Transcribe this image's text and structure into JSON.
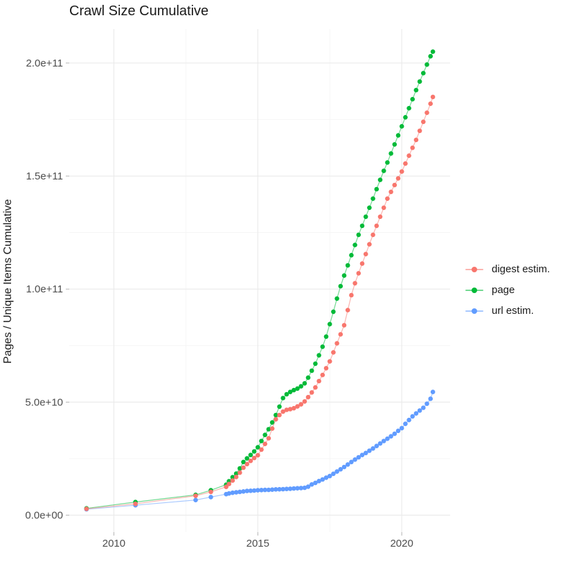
{
  "chart_data": {
    "type": "line",
    "subtype": "scatter-line-cumulative",
    "title": "Crawl Size Cumulative",
    "xlabel": "",
    "ylabel": "Pages / Unique Items Cumulative",
    "value_unit": "1e9",
    "xlim": [
      2008.45,
      2021.68
    ],
    "ylim_e9": [
      -7.5,
      215
    ],
    "grid": true,
    "legend_position": "right",
    "x_major_ticks": [
      {
        "label": "2010",
        "value": 2010
      },
      {
        "label": "2015",
        "value": 2015
      },
      {
        "label": "2020",
        "value": 2020
      }
    ],
    "x_minor_ticks": [
      2012.5,
      2017.5
    ],
    "y_major_ticks": [
      {
        "label": "0.0e+00",
        "value_e9": 0
      },
      {
        "label": "5.0e+10",
        "value_e9": 50
      },
      {
        "label": "1.0e+11",
        "value_e9": 100
      },
      {
        "label": "1.5e+11",
        "value_e9": 150
      },
      {
        "label": "2.0e+11",
        "value_e9": 200
      }
    ],
    "y_minor_ticks_e9": [
      25,
      75,
      125,
      175
    ],
    "series": [
      {
        "name": "digest estim.",
        "color": "#F8766D",
        "points": [
          [
            2009.05,
            2.8
          ],
          [
            2010.75,
            5.0
          ],
          [
            2012.84,
            8.6
          ],
          [
            2013.37,
            10.3
          ],
          [
            2013.9,
            12.5
          ],
          [
            2014.0,
            13.8
          ],
          [
            2014.125,
            15.3
          ],
          [
            2014.25,
            16.9
          ],
          [
            2014.375,
            18.8
          ],
          [
            2014.5,
            21
          ],
          [
            2014.625,
            22.6
          ],
          [
            2014.75,
            24
          ],
          [
            2014.875,
            25.3
          ],
          [
            2015.0,
            26.5
          ],
          [
            2015.125,
            29
          ],
          [
            2015.25,
            31.5
          ],
          [
            2015.375,
            34
          ],
          [
            2015.5,
            38.3
          ],
          [
            2015.625,
            42.4
          ],
          [
            2015.75,
            44.3
          ],
          [
            2015.875,
            45.8
          ],
          [
            2016.0,
            46.6
          ],
          [
            2016.125,
            46.9
          ],
          [
            2016.25,
            47.3
          ],
          [
            2016.375,
            48.1
          ],
          [
            2016.5,
            49
          ],
          [
            2016.625,
            50.3
          ],
          [
            2016.75,
            52.2
          ],
          [
            2016.875,
            54.3
          ],
          [
            2017.0,
            56.5
          ],
          [
            2017.125,
            59.3
          ],
          [
            2017.25,
            62
          ],
          [
            2017.375,
            65
          ],
          [
            2017.5,
            68
          ],
          [
            2017.625,
            72
          ],
          [
            2017.75,
            76
          ],
          [
            2017.875,
            80
          ],
          [
            2018.0,
            84
          ],
          [
            2018.125,
            90.7
          ],
          [
            2018.25,
            97.3
          ],
          [
            2018.375,
            102.6
          ],
          [
            2018.5,
            107
          ],
          [
            2018.625,
            111.3
          ],
          [
            2018.75,
            115.5
          ],
          [
            2018.875,
            119.8
          ],
          [
            2019.0,
            124
          ],
          [
            2019.125,
            128
          ],
          [
            2019.25,
            132
          ],
          [
            2019.375,
            136
          ],
          [
            2019.5,
            140
          ],
          [
            2019.625,
            143
          ],
          [
            2019.75,
            146
          ],
          [
            2019.875,
            149
          ],
          [
            2020.0,
            152
          ],
          [
            2020.125,
            155.5
          ],
          [
            2020.25,
            159
          ],
          [
            2020.375,
            162.5
          ],
          [
            2020.5,
            166
          ],
          [
            2020.625,
            170
          ],
          [
            2020.75,
            174
          ],
          [
            2020.875,
            178
          ],
          [
            2021.0,
            182
          ],
          [
            2021.08,
            185
          ]
        ]
      },
      {
        "name": "page",
        "color": "#00BA38",
        "points": [
          [
            2009.05,
            3.0
          ],
          [
            2010.75,
            5.8
          ],
          [
            2012.84,
            9.0
          ],
          [
            2013.37,
            11.0
          ],
          [
            2013.9,
            13.5
          ],
          [
            2014.0,
            15
          ],
          [
            2014.125,
            16.8
          ],
          [
            2014.25,
            18.4
          ],
          [
            2014.375,
            20.7
          ],
          [
            2014.5,
            23.5
          ],
          [
            2014.625,
            25.1
          ],
          [
            2014.75,
            26.6
          ],
          [
            2014.875,
            28.2
          ],
          [
            2015.0,
            30
          ],
          [
            2015.125,
            32.8
          ],
          [
            2015.25,
            35.5
          ],
          [
            2015.375,
            38
          ],
          [
            2015.5,
            41
          ],
          [
            2015.625,
            44.3
          ],
          [
            2015.75,
            48
          ],
          [
            2015.875,
            51.8
          ],
          [
            2016.0,
            53.5
          ],
          [
            2016.125,
            54.5
          ],
          [
            2016.25,
            55.3
          ],
          [
            2016.375,
            56
          ],
          [
            2016.5,
            57
          ],
          [
            2016.625,
            58.3
          ],
          [
            2016.75,
            60.8
          ],
          [
            2016.875,
            63.9
          ],
          [
            2017.0,
            67
          ],
          [
            2017.125,
            70.7
          ],
          [
            2017.25,
            74.5
          ],
          [
            2017.375,
            79
          ],
          [
            2017.5,
            84.5
          ],
          [
            2017.625,
            90
          ],
          [
            2017.75,
            95.8
          ],
          [
            2017.875,
            101.3
          ],
          [
            2018.0,
            106
          ],
          [
            2018.125,
            110.5
          ],
          [
            2018.25,
            115
          ],
          [
            2018.375,
            119.5
          ],
          [
            2018.5,
            124
          ],
          [
            2018.625,
            128
          ],
          [
            2018.75,
            132
          ],
          [
            2018.875,
            136
          ],
          [
            2019.0,
            140
          ],
          [
            2019.125,
            144.2
          ],
          [
            2019.25,
            148.3
          ],
          [
            2019.375,
            152.3
          ],
          [
            2019.5,
            156
          ],
          [
            2019.625,
            160
          ],
          [
            2019.75,
            164
          ],
          [
            2019.875,
            168
          ],
          [
            2020.0,
            172
          ],
          [
            2020.125,
            176
          ],
          [
            2020.25,
            180
          ],
          [
            2020.375,
            184
          ],
          [
            2020.5,
            188
          ],
          [
            2020.625,
            191.8
          ],
          [
            2020.75,
            195.5
          ],
          [
            2020.875,
            199.3
          ],
          [
            2021.0,
            203
          ],
          [
            2021.08,
            205
          ]
        ]
      },
      {
        "name": "url estim.",
        "color": "#619CFF",
        "points": [
          [
            2009.05,
            2.6
          ],
          [
            2010.75,
            4.4
          ],
          [
            2012.84,
            6.7
          ],
          [
            2013.37,
            8.0
          ],
          [
            2013.9,
            9.3
          ],
          [
            2014.0,
            9.6
          ],
          [
            2014.125,
            9.9
          ],
          [
            2014.25,
            10.1
          ],
          [
            2014.375,
            10.3
          ],
          [
            2014.5,
            10.5
          ],
          [
            2014.625,
            10.7
          ],
          [
            2014.75,
            10.8
          ],
          [
            2014.875,
            10.9
          ],
          [
            2015.0,
            11
          ],
          [
            2015.125,
            11.1
          ],
          [
            2015.25,
            11.15
          ],
          [
            2015.375,
            11.2
          ],
          [
            2015.5,
            11.3
          ],
          [
            2015.625,
            11.4
          ],
          [
            2015.75,
            11.45
          ],
          [
            2015.875,
            11.5
          ],
          [
            2016.0,
            11.6
          ],
          [
            2016.125,
            11.7
          ],
          [
            2016.25,
            11.8
          ],
          [
            2016.375,
            11.9
          ],
          [
            2016.5,
            12
          ],
          [
            2016.625,
            12.1
          ],
          [
            2016.75,
            12.6
          ],
          [
            2016.875,
            13.6
          ],
          [
            2017.0,
            14.3
          ],
          [
            2017.125,
            15.1
          ],
          [
            2017.25,
            15.8
          ],
          [
            2017.375,
            16.6
          ],
          [
            2017.5,
            17.3
          ],
          [
            2017.625,
            18.3
          ],
          [
            2017.75,
            19.3
          ],
          [
            2017.875,
            20.3
          ],
          [
            2018.0,
            21.3
          ],
          [
            2018.125,
            22.4
          ],
          [
            2018.25,
            23.5
          ],
          [
            2018.375,
            24.6
          ],
          [
            2018.5,
            25.6
          ],
          [
            2018.625,
            26.6
          ],
          [
            2018.75,
            27.5
          ],
          [
            2018.875,
            28.5
          ],
          [
            2019.0,
            29.5
          ],
          [
            2019.125,
            30.6
          ],
          [
            2019.25,
            31.7
          ],
          [
            2019.375,
            32.8
          ],
          [
            2019.5,
            33.8
          ],
          [
            2019.625,
            34.9
          ],
          [
            2019.75,
            36
          ],
          [
            2019.875,
            37.3
          ],
          [
            2020.0,
            38.5
          ],
          [
            2020.125,
            40.4
          ],
          [
            2020.25,
            42.1
          ],
          [
            2020.375,
            43.7
          ],
          [
            2020.5,
            45
          ],
          [
            2020.625,
            46.3
          ],
          [
            2020.75,
            47.5
          ],
          [
            2020.875,
            49.3
          ],
          [
            2021.0,
            51.5
          ],
          [
            2021.08,
            54.5
          ]
        ]
      }
    ]
  }
}
